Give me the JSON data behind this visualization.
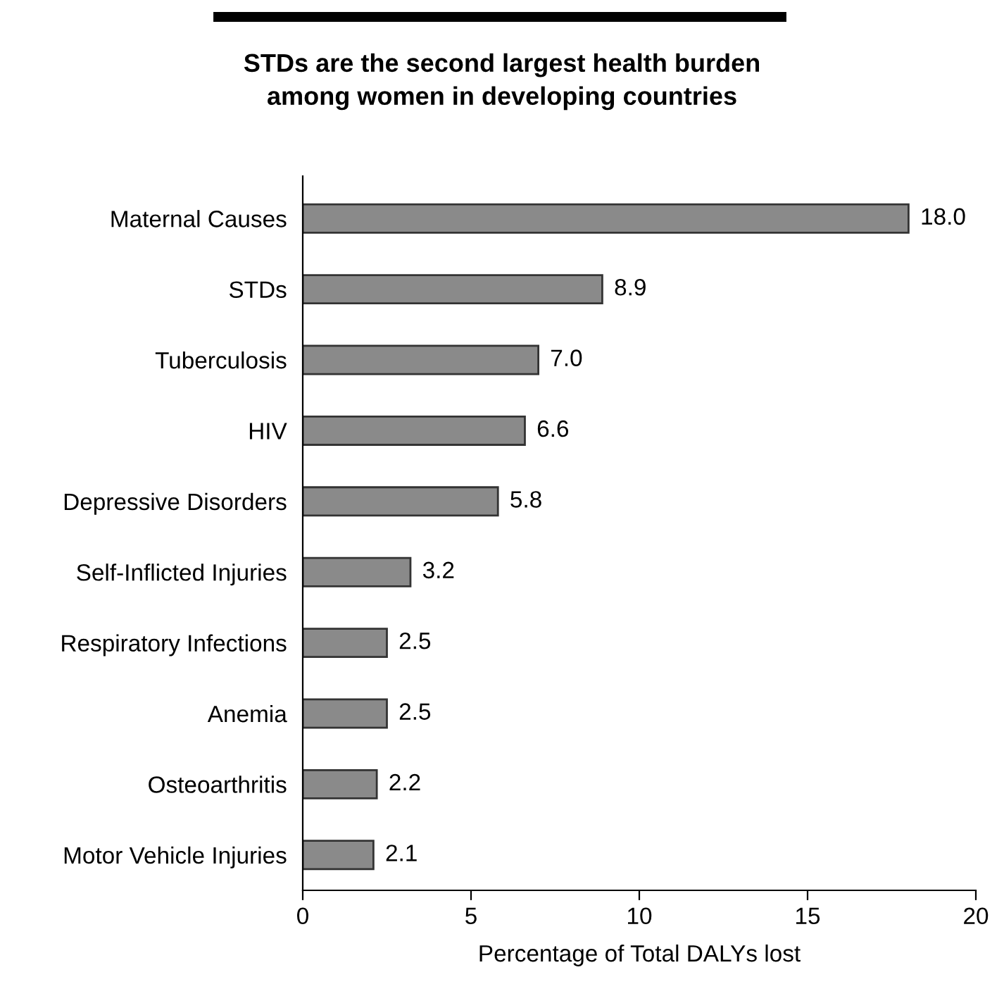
{
  "chart_data": {
    "type": "bar",
    "orientation": "horizontal",
    "title": "STDs are the second largest health burden\namong women in developing countries",
    "xlabel": "Percentage of Total DALYs lost",
    "categories": [
      "Maternal Causes",
      "STDs",
      "Tuberculosis",
      "HIV",
      "Depressive Disorders",
      "Self-Inflicted Injuries",
      "Respiratory Infections",
      "Anemia",
      "Osteoarthritis",
      "Motor Vehicle Injuries"
    ],
    "values": [
      18.0,
      8.9,
      7.0,
      6.6,
      5.8,
      3.2,
      2.5,
      2.5,
      2.2,
      2.1
    ],
    "value_labels": [
      "18.0",
      "8.9",
      "7.0",
      "6.6",
      "5.8",
      "3.2",
      "2.5",
      "2.5",
      "2.2",
      "2.1"
    ],
    "color": "#8a8a8a",
    "xlim": [
      0,
      20
    ],
    "xticks": [
      0,
      5,
      10,
      15,
      20
    ],
    "grid": false,
    "legend": false
  }
}
